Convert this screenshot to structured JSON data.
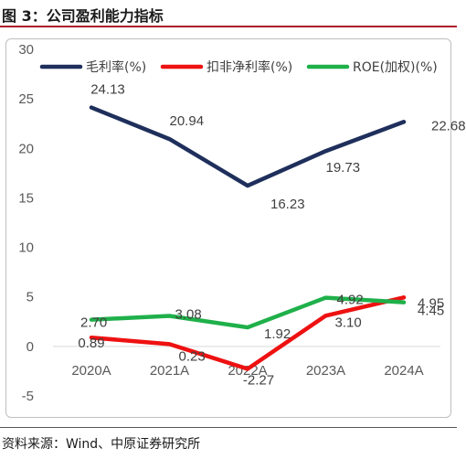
{
  "figure_title": "图 3：公司盈利能力指标",
  "source_note": "资料来源：Wind、中原证券研究所",
  "colors": {
    "title_rule": "#b01c2c"
  },
  "chart_data": {
    "type": "line",
    "categories": [
      "2020A",
      "2021A",
      "2022A",
      "2023A",
      "2024A"
    ],
    "ylim": [
      -5,
      30
    ],
    "yticks": [
      -5,
      0,
      5,
      10,
      15,
      20,
      25,
      30
    ],
    "grid": false,
    "legend": "top",
    "series": [
      {
        "name": "毛利率(%)",
        "color": "#1f2f5c",
        "values": [
          24.13,
          20.94,
          16.23,
          19.73,
          22.68
        ],
        "labels": [
          "24.13",
          "20.94",
          "16.23",
          "19.73",
          "22.68"
        ]
      },
      {
        "name": "扣非净利率(%)",
        "color": "#ee1111",
        "values": [
          0.89,
          0.23,
          -2.27,
          3.1,
          4.95
        ],
        "labels": [
          "0.89",
          "0.23",
          "-2.27",
          "3.10",
          "4.95"
        ]
      },
      {
        "name": "ROE(加权)(%)",
        "color": "#1fb04a",
        "values": [
          2.7,
          3.08,
          1.92,
          4.92,
          4.45
        ],
        "labels": [
          "2.70",
          "3.08",
          "1.92",
          "4.92",
          "4.45"
        ]
      }
    ]
  }
}
